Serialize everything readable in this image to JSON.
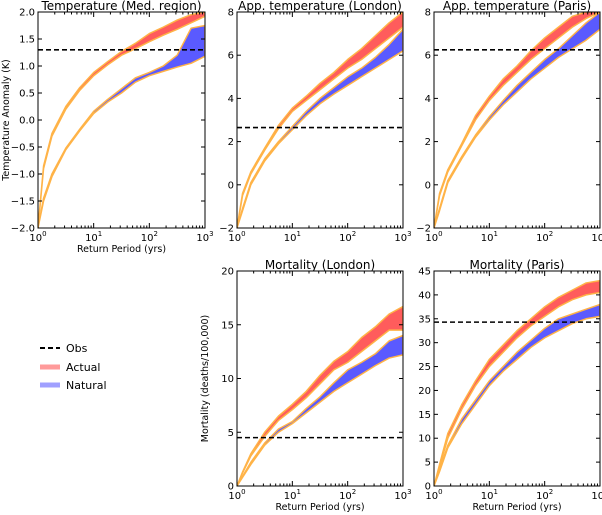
{
  "colors": {
    "actual": "#ff5c5c",
    "natural": "#5a5aff",
    "edge": "#ffb347",
    "obs": "#000000",
    "actual_legend": "#ff9a9a",
    "natural_legend": "#a0a0ff"
  },
  "legend": {
    "obs": "Obs",
    "actual": "Actual",
    "natural": "Natural",
    "placement": "left, below top-left panel"
  },
  "chart_data": [
    {
      "type": "area",
      "title": "Temperature (Med. region)",
      "xlabel": "Return Period (yrs)",
      "ylabel": "Temperature Anomaly (K)",
      "xscale": "log",
      "xlim": [
        1,
        1000
      ],
      "ylim": [
        -2,
        2
      ],
      "yticks": [
        "−2.0",
        "−1.5",
        "−1.0",
        "−0.5",
        "0.0",
        "0.5",
        "1.0",
        "1.5",
        "2.0"
      ],
      "ytick_values": [
        -2,
        -1.5,
        -1,
        -0.5,
        0,
        0.5,
        1,
        1.5,
        2
      ],
      "xticks": [
        "10",
        "10",
        "10",
        "10"
      ],
      "xtick_exponents": [
        "0",
        "1",
        "2",
        "3"
      ],
      "obs": 1.3,
      "log10_x": [
        0,
        0.1,
        0.25,
        0.5,
        0.75,
        1,
        1.25,
        1.5,
        1.75,
        2,
        2.25,
        2.5,
        2.75,
        3
      ],
      "series": [
        {
          "name": "Actual",
          "lower": [
            -2,
            -0.9,
            -0.3,
            0.2,
            0.55,
            0.82,
            1.02,
            1.2,
            1.32,
            1.45,
            1.57,
            1.68,
            1.8,
            1.92
          ],
          "upper": [
            -2,
            -0.85,
            -0.25,
            0.25,
            0.6,
            0.88,
            1.08,
            1.27,
            1.42,
            1.6,
            1.72,
            1.85,
            1.95,
            2.0
          ]
        },
        {
          "name": "Natural",
          "lower": [
            -2,
            -1.5,
            -1.05,
            -0.55,
            -0.2,
            0.12,
            0.33,
            0.5,
            0.7,
            0.82,
            0.9,
            0.98,
            1.05,
            1.18
          ],
          "upper": [
            -2,
            -1.45,
            -1.0,
            -0.52,
            -0.17,
            0.16,
            0.38,
            0.58,
            0.78,
            0.88,
            1.0,
            1.2,
            1.7,
            1.75
          ]
        }
      ]
    },
    {
      "type": "area",
      "title": "App. temperature (London)",
      "xlabel": "",
      "ylabel": "",
      "xscale": "log",
      "xlim": [
        1,
        1000
      ],
      "ylim": [
        -2,
        8
      ],
      "yticks": [
        "−2",
        "0",
        "2",
        "4",
        "6",
        "8"
      ],
      "ytick_values": [
        -2,
        0,
        2,
        4,
        6,
        8
      ],
      "xticks": [
        "10",
        "10",
        "10",
        "10"
      ],
      "xtick_exponents": [
        "0",
        "1",
        "2",
        "3"
      ],
      "obs": 2.65,
      "log10_x": [
        0,
        0.1,
        0.25,
        0.5,
        0.75,
        1,
        1.25,
        1.5,
        1.75,
        2,
        2.25,
        2.5,
        2.75,
        3
      ],
      "series": [
        {
          "name": "Actual",
          "lower": [
            -2,
            -0.5,
            0.5,
            1.6,
            2.6,
            3.4,
            3.9,
            4.4,
            4.9,
            5.4,
            5.8,
            6.3,
            6.8,
            7.3
          ],
          "upper": [
            -2,
            -0.4,
            0.6,
            1.7,
            2.75,
            3.55,
            4.1,
            4.7,
            5.2,
            5.8,
            6.3,
            6.9,
            7.5,
            8.0
          ]
        },
        {
          "name": "Natural",
          "lower": [
            -2,
            -1.2,
            0,
            1.1,
            1.9,
            2.55,
            3.2,
            3.75,
            4.2,
            4.6,
            5.0,
            5.4,
            5.8,
            6.2
          ],
          "upper": [
            -2,
            -1.1,
            0.1,
            1.2,
            2.0,
            2.7,
            3.4,
            4.0,
            4.5,
            5.0,
            5.4,
            5.9,
            6.5,
            7.2
          ]
        }
      ]
    },
    {
      "type": "area",
      "title": "App. temperature (Paris)",
      "xlabel": "",
      "ylabel": "",
      "xscale": "log",
      "xlim": [
        1,
        1000
      ],
      "ylim": [
        -2,
        8
      ],
      "yticks": [
        "−2",
        "0",
        "2",
        "4",
        "6",
        "8"
      ],
      "ytick_values": [
        -2,
        0,
        2,
        4,
        6,
        8
      ],
      "xticks": [
        "10",
        "10",
        "10",
        "10"
      ],
      "xtick_exponents": [
        "0",
        "1",
        "2",
        "3"
      ],
      "obs": 6.25,
      "log10_x": [
        0,
        0.1,
        0.25,
        0.5,
        0.75,
        1,
        1.25,
        1.5,
        1.75,
        2,
        2.25,
        2.5,
        2.75,
        3
      ],
      "series": [
        {
          "name": "Actual",
          "lower": [
            -2,
            -0.5,
            0.6,
            1.8,
            3.0,
            3.9,
            4.6,
            5.2,
            5.8,
            6.3,
            6.8,
            7.3,
            7.7,
            8.0
          ],
          "upper": [
            -2,
            -0.4,
            0.7,
            1.9,
            3.2,
            4.1,
            4.9,
            5.5,
            6.2,
            6.8,
            7.3,
            7.8,
            8,
            8
          ]
        },
        {
          "name": "Natural",
          "lower": [
            -2,
            -1.2,
            0.1,
            1.2,
            2.2,
            3.0,
            3.7,
            4.3,
            4.9,
            5.4,
            5.9,
            6.3,
            6.7,
            7.2
          ],
          "upper": [
            -2,
            -1.1,
            0.2,
            1.3,
            2.3,
            3.15,
            3.9,
            4.6,
            5.2,
            5.8,
            6.3,
            6.9,
            7.5,
            8.0
          ]
        }
      ]
    },
    {
      "type": "area",
      "title": "Mortality (London)",
      "xlabel": "Return Period (yrs)",
      "ylabel": "Mortality (deaths/100,000)",
      "xscale": "log",
      "xlim": [
        1,
        1000
      ],
      "ylim": [
        0,
        20
      ],
      "yticks": [
        "0",
        "5",
        "10",
        "15",
        "20"
      ],
      "ytick_values": [
        0,
        5,
        10,
        15,
        20
      ],
      "xticks": [
        "10",
        "10",
        "10",
        "10"
      ],
      "xtick_exponents": [
        "0",
        "1",
        "2",
        "3"
      ],
      "obs": 4.5,
      "log10_x": [
        0,
        0.1,
        0.25,
        0.5,
        0.75,
        1,
        1.25,
        1.5,
        1.75,
        2,
        2.25,
        2.5,
        2.75,
        3
      ],
      "series": [
        {
          "name": "Actual",
          "lower": [
            0,
            1.2,
            2.8,
            4.6,
            6.1,
            7.1,
            8.2,
            9.5,
            10.8,
            11.5,
            12.5,
            13.5,
            14.5,
            14.5
          ],
          "upper": [
            0,
            1.3,
            3.0,
            5.0,
            6.5,
            7.6,
            8.8,
            10.3,
            11.6,
            12.5,
            13.8,
            14.8,
            16.0,
            16.7
          ]
        },
        {
          "name": "Natural",
          "lower": [
            0,
            0.8,
            2.0,
            3.8,
            5.0,
            5.8,
            6.8,
            7.8,
            8.8,
            9.6,
            10.4,
            11.2,
            11.9,
            12.2
          ],
          "upper": [
            0,
            0.9,
            2.2,
            4.0,
            5.3,
            6.0,
            7.2,
            8.3,
            9.6,
            10.8,
            11.5,
            12.3,
            13.5,
            14.0
          ]
        }
      ]
    },
    {
      "type": "area",
      "title": "Mortality (Paris)",
      "xlabel": "Return Period (yrs)",
      "ylabel": "",
      "xscale": "log",
      "xlim": [
        1,
        1000
      ],
      "ylim": [
        0,
        45
      ],
      "yticks": [
        "0",
        "5",
        "10",
        "15",
        "20",
        "25",
        "30",
        "35",
        "40",
        "45"
      ],
      "ytick_values": [
        0,
        5,
        10,
        15,
        20,
        25,
        30,
        35,
        40,
        45
      ],
      "xticks": [
        "10",
        "10",
        "10",
        "10"
      ],
      "xtick_exponents": [
        "0",
        "1",
        "2",
        "3"
      ],
      "obs": 34.3,
      "log10_x": [
        0,
        0.1,
        0.25,
        0.5,
        0.75,
        1,
        1.25,
        1.5,
        1.75,
        2,
        2.25,
        2.5,
        2.75,
        3
      ],
      "series": [
        {
          "name": "Actual",
          "lower": [
            0,
            4,
            10,
            16,
            21,
            25,
            28,
            31,
            33.5,
            35.5,
            37.5,
            39,
            40,
            40.5
          ],
          "upper": [
            0,
            4.5,
            11,
            17,
            22,
            26.5,
            29.5,
            32.5,
            35,
            37.5,
            39.5,
            41,
            42.5,
            43
          ]
        },
        {
          "name": "Natural",
          "lower": [
            0,
            3,
            8,
            13,
            17,
            21,
            24,
            26.5,
            29,
            31,
            32.5,
            34,
            35,
            35.5
          ],
          "upper": [
            0,
            3.5,
            8.5,
            14,
            18,
            22,
            25,
            28,
            30.5,
            33,
            35,
            36,
            37,
            38
          ]
        }
      ]
    }
  ]
}
